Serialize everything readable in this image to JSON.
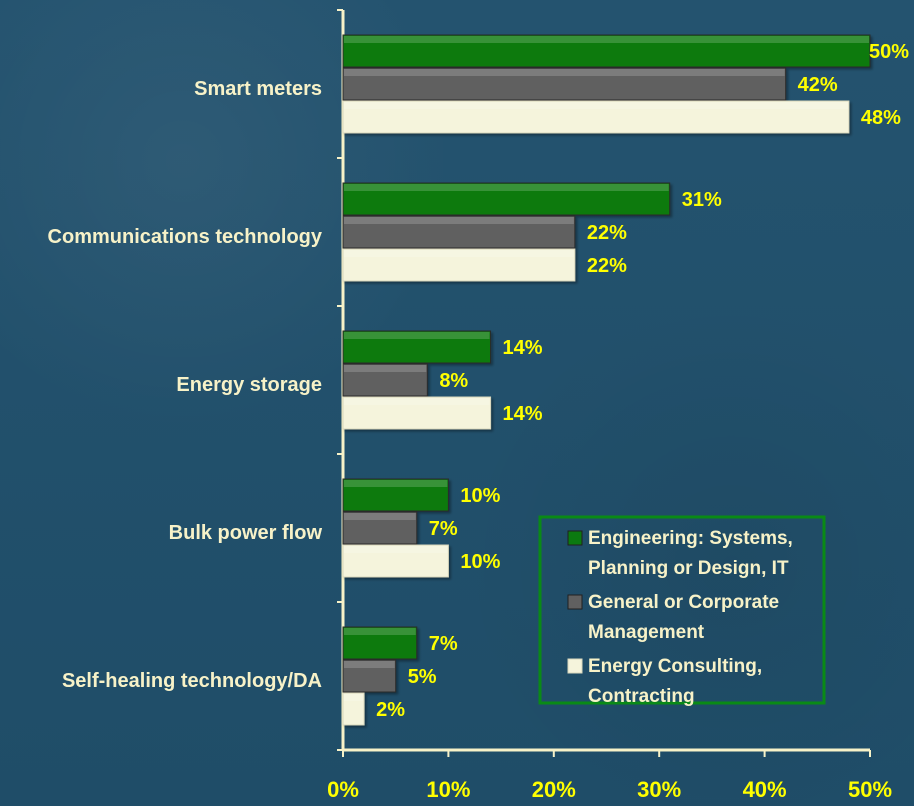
{
  "chart_data": {
    "type": "bar",
    "orientation": "horizontal",
    "categories": [
      "Smart meters",
      "Communications technology",
      "Energy storage",
      "Bulk power flow",
      "Self-healing technology/DA"
    ],
    "series": [
      {
        "name": "Engineering: Systems, Planning or Design, IT",
        "values": [
          50,
          31,
          14,
          10,
          7
        ],
        "color": "#0b7a10"
      },
      {
        "name": "General or Corporate Management",
        "values": [
          42,
          22,
          8,
          7,
          5
        ],
        "color": "#606060"
      },
      {
        "name": "Energy Consulting, Contracting",
        "values": [
          48,
          22,
          14,
          10,
          2
        ],
        "color": "#f5f4dc"
      }
    ],
    "data_labels": [
      [
        "50%",
        "42%",
        "48%"
      ],
      [
        "31%",
        "22%",
        "22%"
      ],
      [
        "14%",
        "8%",
        "14%"
      ],
      [
        "10%",
        "7%",
        "10%"
      ],
      [
        "7%",
        "5%",
        "2%"
      ]
    ],
    "x_ticks": [
      "0%",
      "10%",
      "20%",
      "30%",
      "40%",
      "50%"
    ],
    "xlim": [
      0,
      50
    ],
    "legend": {
      "position": "lower-right",
      "entries": [
        {
          "lines": [
            "Engineering: Systems,",
            "Planning or Design, IT"
          ],
          "color": "#0b7a10"
        },
        {
          "lines": [
            "General or Corporate",
            "Management"
          ],
          "color": "#606060"
        },
        {
          "lines": [
            "Energy Consulting,",
            "Contracting"
          ],
          "color": "#f5f4dc"
        }
      ],
      "border_color": "#0a8a16"
    },
    "colors": {
      "background": "#1f4d68",
      "axis": "#f7f2c8",
      "category_label": "#f7f2c8",
      "value_label": "#ffff00",
      "tick_label": "#ffff00"
    },
    "grid": false
  }
}
